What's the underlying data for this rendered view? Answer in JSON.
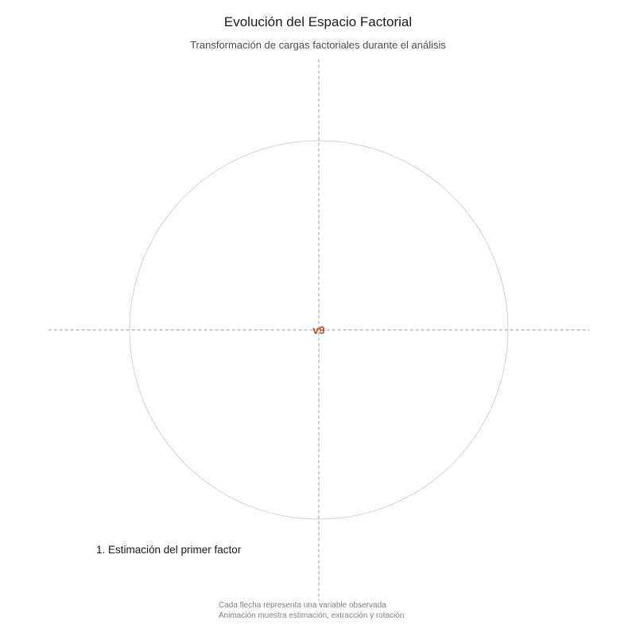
{
  "title": "Evolución del Espacio Factorial",
  "subtitle": "Transformación de cargas factoriales durante el análisis",
  "stage_label": "1. Estimación del primer factor",
  "caption": {
    "line1": "Cada flecha representa una variable observada",
    "line2": "Animación muestra estimación, extracción y rotación"
  },
  "chart_data": {
    "type": "scatter",
    "title": "Evolución del Espacio Factorial",
    "subtitle": "Transformación de cargas factoriales durante el análisis",
    "xlim": [
      -1.43,
      1.43
    ],
    "ylim": [
      -1.43,
      1.43
    ],
    "unit_circle_radius": 1,
    "reference_lines": {
      "x": 0,
      "y": 0,
      "style": "dashed"
    },
    "grid": false,
    "arrow_color": "#b5552a",
    "arrows": [
      {
        "x": 0,
        "y": 0,
        "label": "v9"
      }
    ]
  }
}
